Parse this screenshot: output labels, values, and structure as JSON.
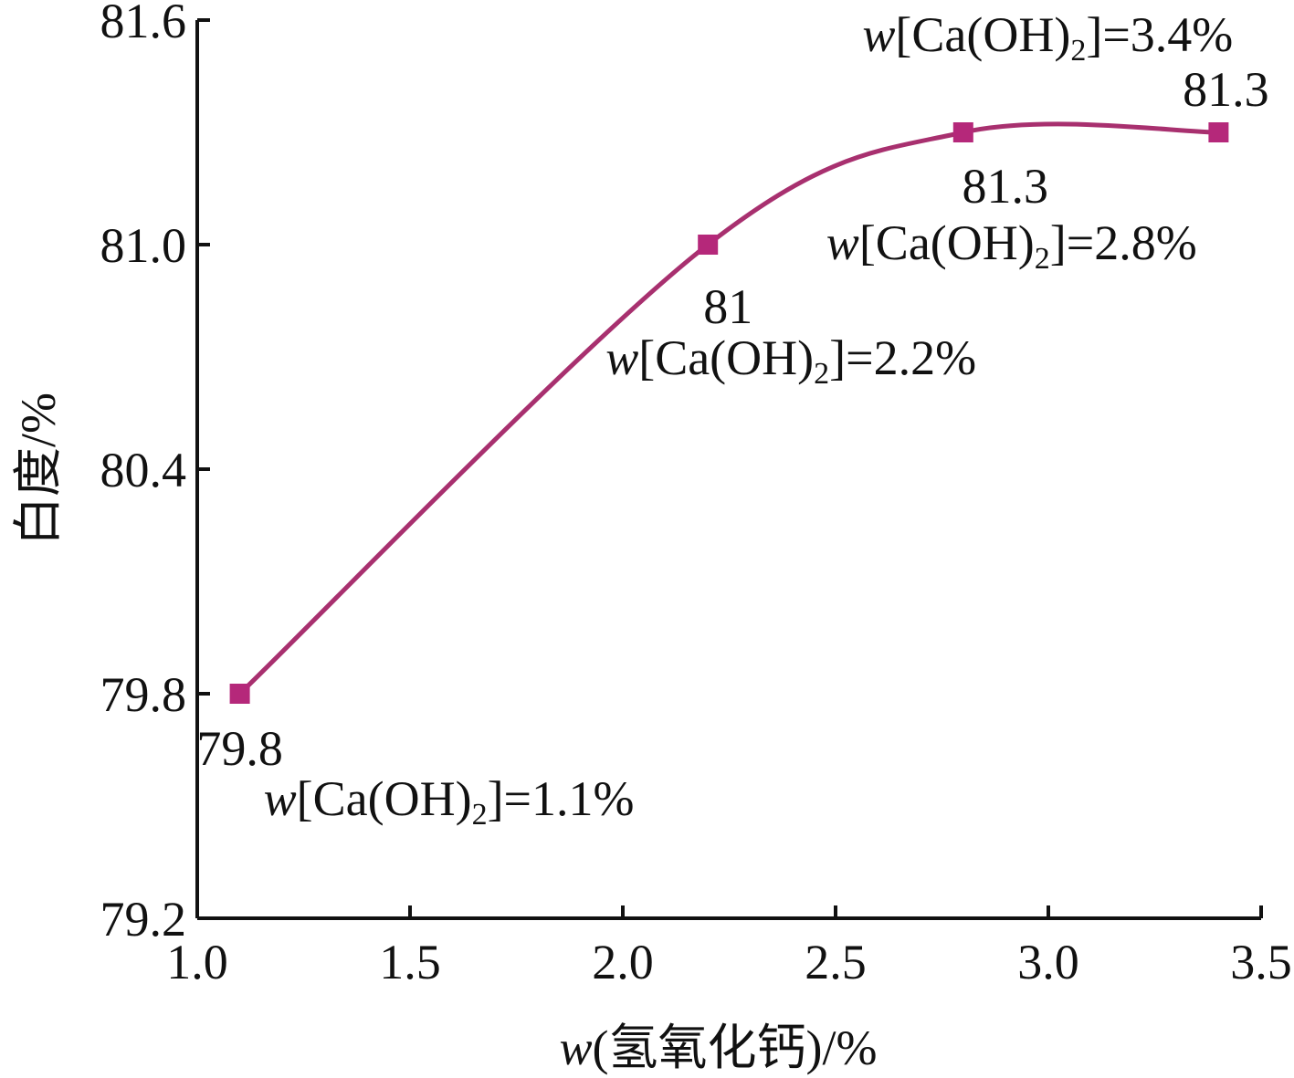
{
  "chart_data": {
    "type": "line",
    "xlabel_var": "w",
    "xlabel_rest": "(氢氧化钙)/%",
    "ylabel": "白度/%",
    "xlim": [
      1.0,
      3.5
    ],
    "ylim": [
      79.2,
      81.6
    ],
    "x_ticks": [
      "1.0",
      "1.5",
      "2.0",
      "2.5",
      "3.0",
      "3.5"
    ],
    "y_ticks": [
      "79.2",
      "79.8",
      "80.4",
      "81.0",
      "81.6"
    ],
    "colors": {
      "series": "#b5287a",
      "line": "#a8306f",
      "axis": "#111111"
    },
    "points": [
      {
        "x": 1.1,
        "y": 79.8,
        "value_label": "79.8",
        "ann_var": "w",
        "ann_open": "[Ca(OH)",
        "ann_sub": "2",
        "ann_close": "]=1.1%"
      },
      {
        "x": 2.2,
        "y": 81.0,
        "value_label": "81",
        "ann_var": "w",
        "ann_open": "[Ca(OH)",
        "ann_sub": "2",
        "ann_close": "]=2.2%"
      },
      {
        "x": 2.8,
        "y": 81.3,
        "value_label": "81.3",
        "ann_var": "w",
        "ann_open": "[Ca(OH)",
        "ann_sub": "2",
        "ann_close": "]=2.8%"
      },
      {
        "x": 3.4,
        "y": 81.3,
        "value_label": "81.3",
        "ann_var": "w",
        "ann_open": "[Ca(OH)",
        "ann_sub": "2",
        "ann_close": "]=3.4%"
      }
    ],
    "grid": false,
    "legend": "none"
  }
}
